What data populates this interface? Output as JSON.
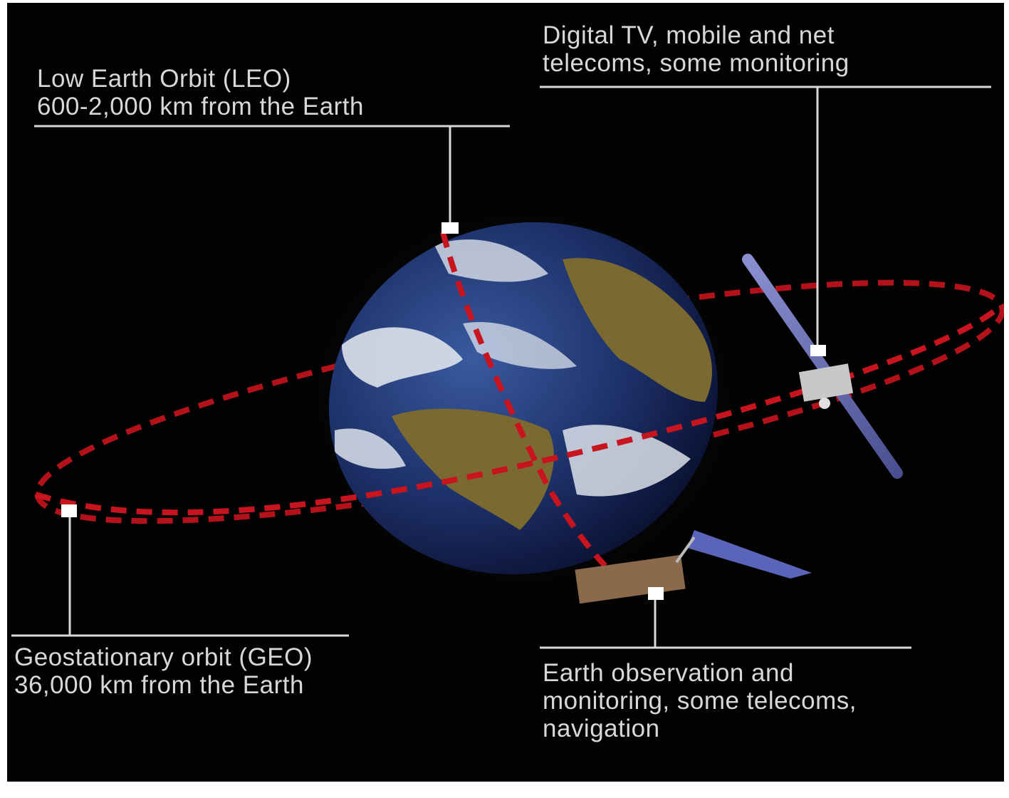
{
  "labels": {
    "leo": {
      "line1": "Low Earth Orbit (LEO)",
      "line2": "600-2,000 km from the Earth"
    },
    "telecom": {
      "line1": "Digital TV, mobile and net",
      "line2": "telecoms, some monitoring"
    },
    "geo": {
      "line1": "Geostationary orbit (GEO)",
      "line2": "36,000 km from the Earth"
    },
    "eo": {
      "line1": "Earth observation and",
      "line2": "monitoring, some telecoms,",
      "line3": "navigation"
    }
  },
  "colors": {
    "background": "#020202",
    "orbit": "#c8141e",
    "ocean": "#1c2f66",
    "land": "#7a6a32",
    "cloud": "#e8ecf2",
    "leader": "#d8d8d8"
  },
  "icons": [
    "earth-globe",
    "geo-satellite",
    "leo-satellite"
  ]
}
